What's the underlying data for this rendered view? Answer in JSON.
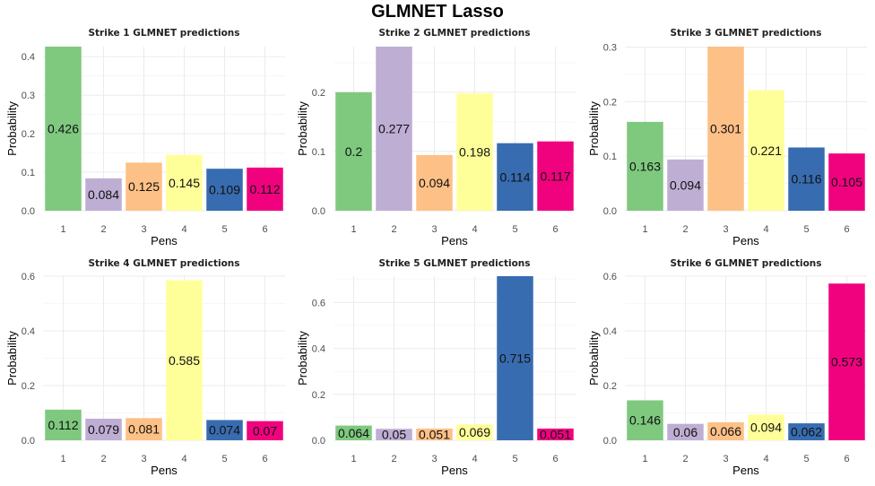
{
  "main_title": "GLMNET Lasso",
  "chart_data": [
    {
      "type": "bar",
      "title": "Strike 1 GLMNET predictions",
      "xlabel": "Pens",
      "ylabel": "Probability",
      "categories": [
        "1",
        "2",
        "3",
        "4",
        "5",
        "6"
      ],
      "values": [
        0.426,
        0.084,
        0.125,
        0.145,
        0.109,
        0.112
      ],
      "data_labels": [
        "0.426",
        "0.084",
        "0.125",
        "0.145",
        "0.109",
        "0.112"
      ],
      "ylim": [
        0,
        0.426
      ],
      "yticks": [
        0.0,
        0.1,
        0.2,
        0.3,
        0.4
      ],
      "ytick_labels": [
        "0.0",
        "0.1",
        "0.2",
        "0.3",
        "0.4"
      ],
      "grid": true,
      "legend": "none"
    },
    {
      "type": "bar",
      "title": "Strike 2 GLMNET predictions",
      "xlabel": "Pens",
      "ylabel": "Probability",
      "categories": [
        "1",
        "2",
        "3",
        "4",
        "5",
        "6"
      ],
      "values": [
        0.2,
        0.277,
        0.094,
        0.198,
        0.114,
        0.117
      ],
      "data_labels": [
        "0.2",
        "0.277",
        "0.094",
        "0.198",
        "0.114",
        "0.117"
      ],
      "ylim": [
        0,
        0.277
      ],
      "yticks": [
        0.0,
        0.1,
        0.2
      ],
      "ytick_labels": [
        "0.0",
        "0.1",
        "0.2"
      ],
      "grid": true,
      "legend": "none"
    },
    {
      "type": "bar",
      "title": "Strike 3 GLMNET predictions",
      "xlabel": "Pens",
      "ylabel": "Probability",
      "categories": [
        "1",
        "2",
        "3",
        "4",
        "5",
        "6"
      ],
      "values": [
        0.163,
        0.094,
        0.301,
        0.221,
        0.116,
        0.105
      ],
      "data_labels": [
        "0.163",
        "0.094",
        "0.301",
        "0.221",
        "0.116",
        "0.105"
      ],
      "ylim": [
        0,
        0.301
      ],
      "yticks": [
        0.0,
        0.1,
        0.2,
        0.3
      ],
      "ytick_labels": [
        "0.0",
        "0.1",
        "0.2",
        "0.3"
      ],
      "grid": true,
      "legend": "none"
    },
    {
      "type": "bar",
      "title": "Strike 4 GLMNET predictions",
      "xlabel": "Pens",
      "ylabel": "Probability",
      "categories": [
        "1",
        "2",
        "3",
        "4",
        "5",
        "6"
      ],
      "values": [
        0.112,
        0.079,
        0.081,
        0.585,
        0.074,
        0.07
      ],
      "data_labels": [
        "0.112",
        "0.079",
        "0.081",
        "0.585",
        "0.074",
        "0.07"
      ],
      "ylim": [
        0,
        0.6
      ],
      "yticks": [
        0.0,
        0.2,
        0.4,
        0.6
      ],
      "ytick_labels": [
        "0.0",
        "0.2",
        "0.4",
        "0.6"
      ],
      "grid": true,
      "legend": "none"
    },
    {
      "type": "bar",
      "title": "Strike 5 GLMNET predictions",
      "xlabel": "Pens",
      "ylabel": "Probability",
      "categories": [
        "1",
        "2",
        "3",
        "4",
        "5",
        "6"
      ],
      "values": [
        0.064,
        0.05,
        0.051,
        0.069,
        0.715,
        0.051
      ],
      "data_labels": [
        "0.064",
        "0.05",
        "0.051",
        "0.069",
        "0.715",
        "0.051"
      ],
      "ylim": [
        0,
        0.715
      ],
      "yticks": [
        0.0,
        0.2,
        0.4,
        0.6
      ],
      "ytick_labels": [
        "0.0",
        "0.2",
        "0.4",
        "0.6"
      ],
      "grid": true,
      "legend": "none"
    },
    {
      "type": "bar",
      "title": "Strike 6 GLMNET predictions",
      "xlabel": "Pens",
      "ylabel": "Probability",
      "categories": [
        "1",
        "2",
        "3",
        "4",
        "5",
        "6"
      ],
      "values": [
        0.146,
        0.06,
        0.066,
        0.094,
        0.062,
        0.573
      ],
      "data_labels": [
        "0.146",
        "0.06",
        "0.066",
        "0.094",
        "0.062",
        "0.573"
      ],
      "ylim": [
        0,
        0.6
      ],
      "yticks": [
        0.0,
        0.2,
        0.4,
        0.6
      ],
      "ytick_labels": [
        "0.0",
        "0.2",
        "0.4",
        "0.6"
      ],
      "grid": true,
      "legend": "none"
    }
  ],
  "colors": [
    "#7fc97f",
    "#beaed4",
    "#fdc086",
    "#ffff99",
    "#386cb0",
    "#f0027f"
  ]
}
